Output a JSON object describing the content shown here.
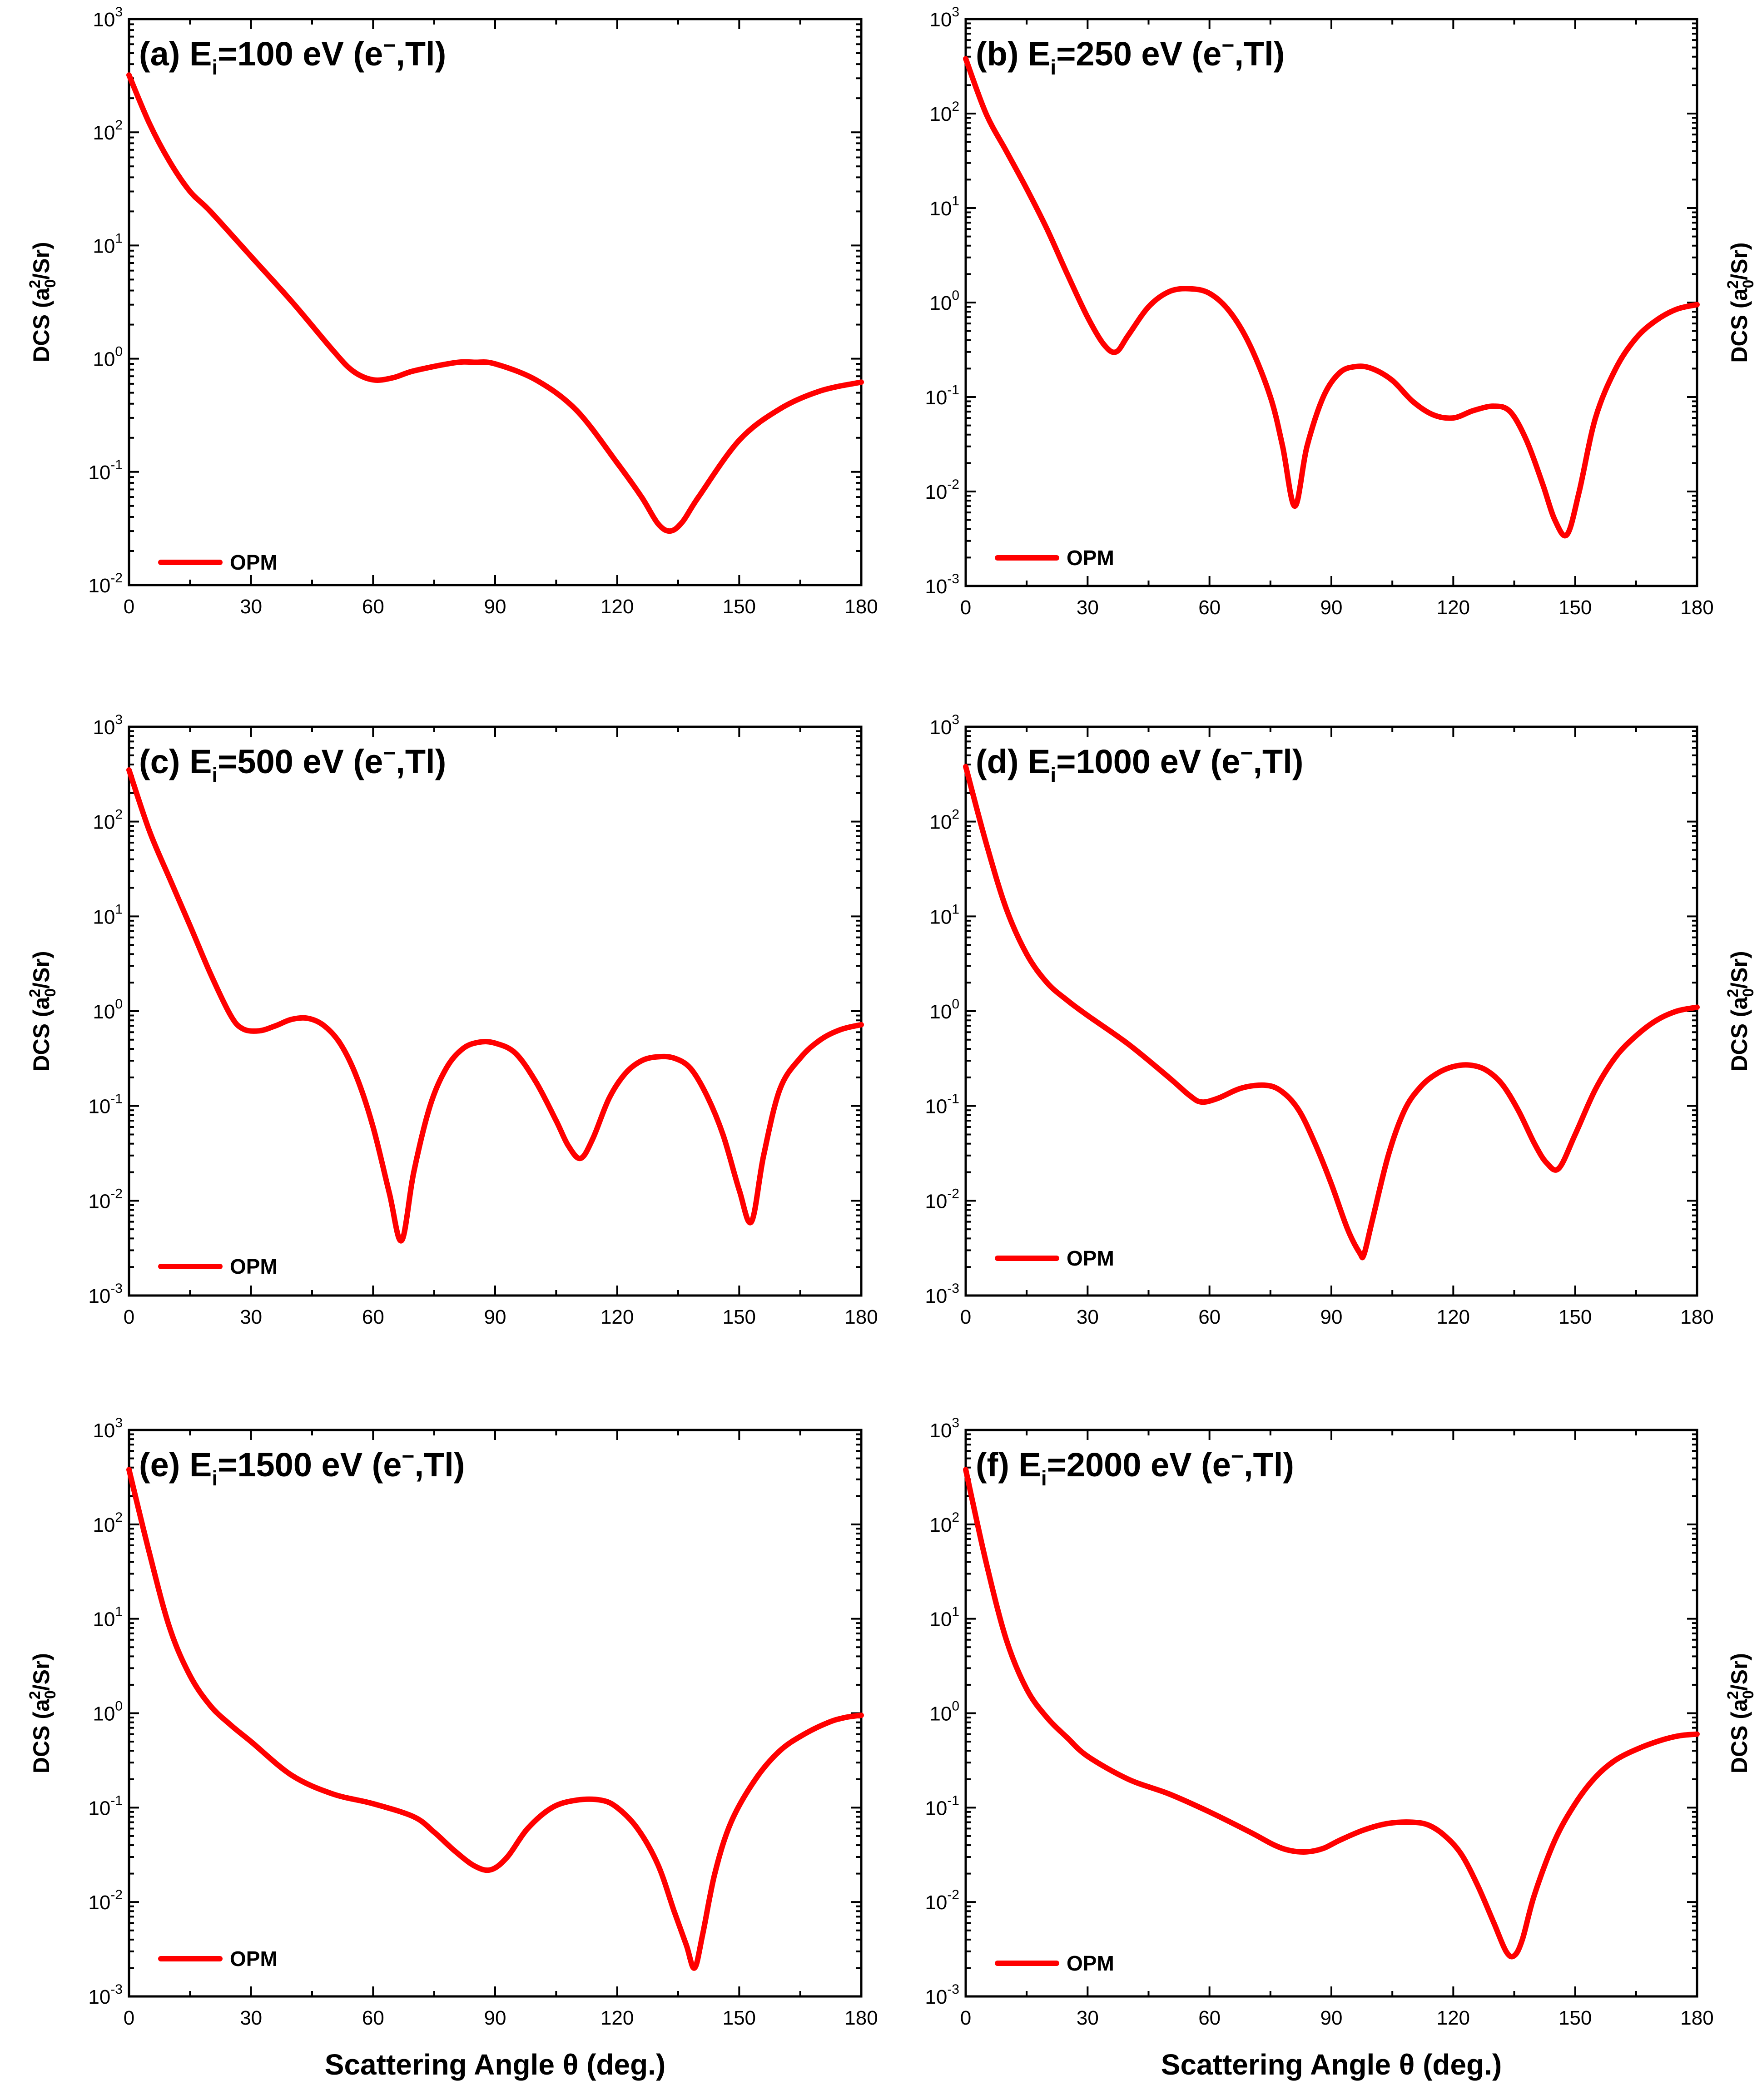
{
  "chart_data": [
    {
      "type": "line",
      "panel": "(a)",
      "title": "(a) E_i=100 eV (e−,Tl)",
      "title_parts": {
        "prefix": "(a) E",
        "sub": "i",
        "mid": "=100 eV (e",
        "sup": "−",
        "suffix": ",Tl)"
      },
      "xlabel": "",
      "ylabel": "DCS (a0²/Sr)",
      "xlim": [
        0,
        180
      ],
      "ylim_exp": [
        -2,
        3
      ],
      "xticks": [
        "0",
        "30",
        "60",
        "90",
        "120",
        "150",
        "180"
      ],
      "yticks": [
        "-2",
        "-1",
        "0",
        "1",
        "2",
        "3"
      ],
      "series": [
        {
          "name": "OPM",
          "x": [
            0,
            5,
            10,
            15,
            20,
            30,
            40,
            50,
            55,
            60,
            65,
            70,
            80,
            85,
            90,
            100,
            110,
            120,
            126,
            130,
            133,
            136,
            140,
            150,
            160,
            170,
            180
          ],
          "y": [
            320,
            120,
            55,
            30,
            20,
            8,
            3.2,
            1.2,
            0.78,
            0.65,
            0.68,
            0.78,
            0.92,
            0.93,
            0.9,
            0.65,
            0.35,
            0.12,
            0.06,
            0.035,
            0.03,
            0.036,
            0.06,
            0.19,
            0.36,
            0.52,
            0.62
          ]
        }
      ]
    },
    {
      "type": "line",
      "panel": "(b)",
      "title": "(b) E_i=250 eV (e−,Tl)",
      "title_parts": {
        "prefix": "(b) E",
        "sub": "i",
        "mid": "=250 eV (e",
        "sup": "−",
        "suffix": ",Tl)"
      },
      "xlabel": "",
      "ylabel": "DCS (a0²/Sr)",
      "xlim": [
        0,
        180
      ],
      "ylim_exp": [
        -3,
        3
      ],
      "xticks": [
        "0",
        "30",
        "60",
        "90",
        "120",
        "150",
        "180"
      ],
      "yticks": [
        "-3",
        "-2",
        "-1",
        "0",
        "1",
        "2",
        "3"
      ],
      "series": [
        {
          "name": "OPM",
          "x": [
            0,
            5,
            10,
            15,
            20,
            25,
            30,
            34,
            37,
            40,
            45,
            50,
            55,
            60,
            65,
            70,
            75,
            78,
            81,
            84,
            88,
            92,
            96,
            100,
            105,
            110,
            115,
            120,
            125,
            130,
            134,
            138,
            142,
            145,
            148,
            151,
            155,
            160,
            165,
            170,
            175,
            180
          ],
          "y": [
            380,
            100,
            40,
            16,
            6,
            2,
            0.7,
            0.36,
            0.3,
            0.45,
            0.9,
            1.3,
            1.4,
            1.25,
            0.8,
            0.35,
            0.1,
            0.03,
            0.007,
            0.03,
            0.1,
            0.18,
            0.21,
            0.2,
            0.15,
            0.09,
            0.065,
            0.06,
            0.072,
            0.08,
            0.07,
            0.035,
            0.012,
            0.005,
            0.0035,
            0.01,
            0.06,
            0.2,
            0.42,
            0.65,
            0.85,
            0.95
          ]
        }
      ]
    },
    {
      "type": "line",
      "panel": "(c)",
      "title": "(c) E_i=500 eV (e−,Tl)",
      "title_parts": {
        "prefix": "(c) E",
        "sub": "i",
        "mid": "=500 eV (e",
        "sup": "−",
        "suffix": ",Tl)"
      },
      "xlabel": "",
      "ylabel": "DCS (a0²/Sr)",
      "xlim": [
        0,
        180
      ],
      "ylim_exp": [
        -3,
        3
      ],
      "xticks": [
        "0",
        "30",
        "60",
        "90",
        "120",
        "150",
        "180"
      ],
      "yticks": [
        "-3",
        "-2",
        "-1",
        "0",
        "1",
        "2",
        "3"
      ],
      "series": [
        {
          "name": "OPM",
          "x": [
            0,
            5,
            10,
            15,
            20,
            25,
            28,
            32,
            36,
            40,
            44,
            48,
            52,
            56,
            60,
            64,
            67,
            70,
            74,
            78,
            82,
            86,
            90,
            95,
            100,
            105,
            108,
            111,
            114,
            118,
            122,
            126,
            130,
            134,
            138,
            142,
            146,
            150,
            153,
            156,
            160,
            165,
            170,
            175,
            180
          ],
          "y": [
            350,
            80,
            25,
            8,
            2.5,
            0.9,
            0.65,
            0.62,
            0.7,
            0.82,
            0.84,
            0.7,
            0.45,
            0.2,
            0.06,
            0.012,
            0.0038,
            0.02,
            0.1,
            0.25,
            0.4,
            0.47,
            0.46,
            0.36,
            0.18,
            0.07,
            0.038,
            0.028,
            0.045,
            0.12,
            0.22,
            0.3,
            0.33,
            0.32,
            0.25,
            0.13,
            0.05,
            0.013,
            0.006,
            0.03,
            0.15,
            0.32,
            0.5,
            0.64,
            0.72
          ]
        }
      ]
    },
    {
      "type": "line",
      "panel": "(d)",
      "title": "(d) E_i=1000 eV (e−,Tl)",
      "title_parts": {
        "prefix": "(d) E",
        "sub": "i",
        "mid": "=1000 eV (e",
        "sup": "−",
        "suffix": ",Tl)"
      },
      "xlabel": "",
      "ylabel": "DCS (a0²/Sr)",
      "xlim": [
        0,
        180
      ],
      "ylim_exp": [
        -3,
        3
      ],
      "xticks": [
        "0",
        "30",
        "60",
        "90",
        "120",
        "150",
        "180"
      ],
      "yticks": [
        "-3",
        "-2",
        "-1",
        "0",
        "1",
        "2",
        "3"
      ],
      "series": [
        {
          "name": "OPM",
          "x": [
            0,
            5,
            10,
            15,
            20,
            25,
            30,
            40,
            50,
            55,
            58,
            62,
            68,
            74,
            78,
            82,
            86,
            90,
            94,
            97,
            98,
            100,
            104,
            108,
            112,
            116,
            120,
            124,
            128,
            132,
            136,
            140,
            143,
            146,
            150,
            155,
            160,
            165,
            170,
            175,
            180
          ],
          "y": [
            380,
            60,
            12,
            4,
            2,
            1.3,
            0.9,
            0.45,
            0.2,
            0.13,
            0.11,
            0.12,
            0.155,
            0.165,
            0.14,
            0.09,
            0.04,
            0.015,
            0.005,
            0.0028,
            0.0027,
            0.006,
            0.03,
            0.09,
            0.16,
            0.22,
            0.26,
            0.27,
            0.24,
            0.17,
            0.09,
            0.04,
            0.025,
            0.022,
            0.05,
            0.15,
            0.33,
            0.55,
            0.8,
            1.0,
            1.1
          ]
        }
      ]
    },
    {
      "type": "line",
      "panel": "(e)",
      "title": "(e) E_i=1500 eV (e−,Tl)",
      "title_parts": {
        "prefix": "(e) E",
        "sub": "i",
        "mid": "=1500 eV (e",
        "sup": "−",
        "suffix": ",Tl)"
      },
      "xlabel": "Scattering Angle θ (deg.)",
      "ylabel": "DCS (a0²/Sr)",
      "xlim": [
        0,
        180
      ],
      "ylim_exp": [
        -3,
        3
      ],
      "xticks": [
        "0",
        "30",
        "60",
        "90",
        "120",
        "150",
        "180"
      ],
      "yticks": [
        "-3",
        "-2",
        "-1",
        "0",
        "1",
        "2",
        "3"
      ],
      "series": [
        {
          "name": "OPM",
          "x": [
            0,
            5,
            10,
            15,
            20,
            25,
            30,
            40,
            50,
            60,
            70,
            75,
            80,
            85,
            89,
            93,
            98,
            104,
            110,
            116,
            120,
            125,
            130,
            134,
            137,
            139,
            141,
            144,
            148,
            154,
            160,
            166,
            172,
            176,
            180
          ],
          "y": [
            380,
            50,
            8,
            2.5,
            1.2,
            0.75,
            0.5,
            0.22,
            0.14,
            0.11,
            0.08,
            0.055,
            0.035,
            0.024,
            0.022,
            0.03,
            0.06,
            0.1,
            0.12,
            0.12,
            0.1,
            0.06,
            0.025,
            0.008,
            0.0035,
            0.002,
            0.0045,
            0.02,
            0.07,
            0.2,
            0.4,
            0.6,
            0.8,
            0.9,
            0.95
          ]
        }
      ]
    },
    {
      "type": "line",
      "panel": "(f)",
      "title": "(f) E_i=2000 eV (e−,Tl)",
      "title_parts": {
        "prefix": "(f) E",
        "sub": "i",
        "mid": "=2000 eV (e",
        "sup": "−",
        "suffix": ",Tl)"
      },
      "xlabel": "Scattering Angle θ (deg.)",
      "ylabel": "DCS (a0²/Sr)",
      "xlim": [
        0,
        180
      ],
      "ylim_exp": [
        -3,
        3
      ],
      "xticks": [
        "0",
        "30",
        "60",
        "90",
        "120",
        "150",
        "180"
      ],
      "yticks": [
        "-3",
        "-2",
        "-1",
        "0",
        "1",
        "2",
        "3"
      ],
      "series": [
        {
          "name": "OPM",
          "x": [
            0,
            5,
            10,
            15,
            20,
            25,
            30,
            40,
            50,
            60,
            70,
            76,
            80,
            84,
            88,
            92,
            98,
            104,
            110,
            114,
            118,
            122,
            126,
            130,
            133,
            135,
            137,
            140,
            145,
            150,
            155,
            160,
            166,
            172,
            176,
            180
          ],
          "y": [
            380,
            40,
            6,
            1.8,
            0.9,
            0.55,
            0.35,
            0.2,
            0.14,
            0.09,
            0.055,
            0.04,
            0.035,
            0.034,
            0.037,
            0.045,
            0.058,
            0.068,
            0.07,
            0.065,
            0.05,
            0.032,
            0.015,
            0.006,
            0.003,
            0.0027,
            0.004,
            0.012,
            0.045,
            0.11,
            0.21,
            0.32,
            0.43,
            0.53,
            0.58,
            0.6
          ]
        }
      ]
    }
  ],
  "ylabel_parts": {
    "pre": "DCS (a",
    "sub": "0",
    "sup": "2",
    "post": "/Sr)"
  },
  "legend_label": "OPM",
  "xlabel_text": "Scattering Angle θ (deg.)",
  "tick_base": "10",
  "colors": {
    "curve": "#ff0000",
    "axis": "#000000"
  },
  "icons": []
}
